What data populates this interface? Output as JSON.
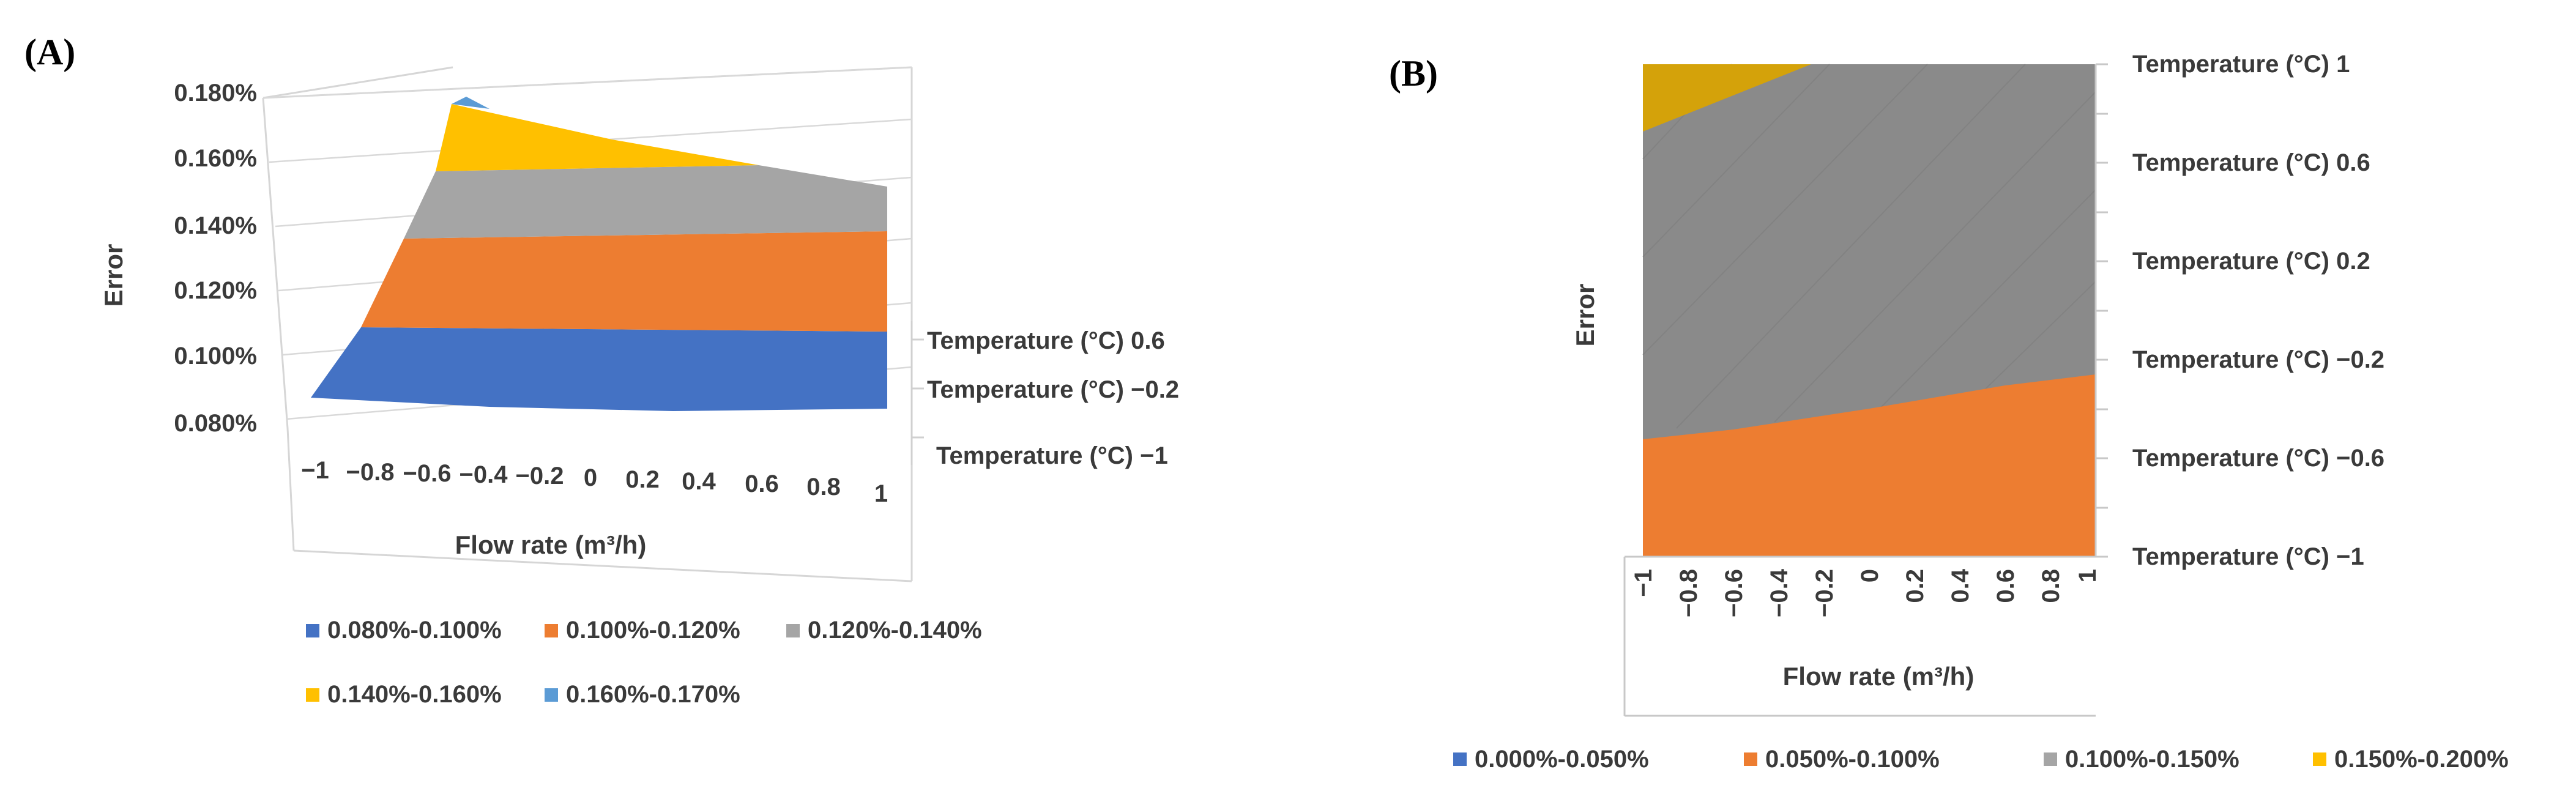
{
  "chart_data": [
    {
      "panel_label": "(A)",
      "type": "surface-3d",
      "xlabel": "Error",
      "xlabel_note": "vertical axis title",
      "z_ticks": [
        "0.080%",
        "0.100%",
        "0.120%",
        "0.140%",
        "0.160%",
        "0.180%"
      ],
      "zlim": [
        0.08,
        0.18
      ],
      "flow_label_html": "Flow rate (m³/h)",
      "flow_ticks": [
        "−1",
        "−0.8",
        "−0.6",
        "−0.4",
        "−0.2",
        "0",
        "0.2",
        "0.4",
        "0.6",
        "0.8",
        "1"
      ],
      "temp_ticks": [
        "Temperature (°C) 0.6",
        "Temperature (°C) −0.2",
        "Temperature (°C) −1"
      ],
      "legend": [
        {
          "label": "0.080%-0.100%",
          "color": "#4472C4"
        },
        {
          "label": "0.100%-0.120%",
          "color": "#ED7D31"
        },
        {
          "label": "0.120%-0.140%",
          "color": "#A5A5A5"
        },
        {
          "label": "0.140%-0.160%",
          "color": "#FFC000"
        },
        {
          "label": "0.160%-0.170%",
          "color": "#5B9BD5"
        }
      ],
      "error_at_back_edge": [
        0.172,
        0.164,
        0.158,
        0.154,
        0.152,
        0.15,
        0.148,
        0.147,
        0.145,
        0.143,
        0.141
      ],
      "error_at_front_edge": [
        0.087,
        0.086,
        0.086,
        0.085,
        0.085,
        0.085,
        0.085,
        0.084,
        0.084,
        0.084,
        0.084
      ]
    },
    {
      "panel_label": "(B)",
      "type": "contour",
      "ylabel": "Error",
      "xlabel": "Flow rate (m³/h)",
      "x_ticks": [
        "−1",
        "−0.8",
        "−0.6",
        "−0.4",
        "−0.2",
        "0",
        "0.2",
        "0.4",
        "0.6",
        "0.8",
        "1"
      ],
      "y_ticks": [
        "Temperature (°C) 1",
        "Temperature (°C) 0.6",
        "Temperature (°C) 0.2",
        "Temperature (°C) −0.2",
        "Temperature (°C) −0.6",
        "Temperature (°C) −1"
      ],
      "xlim": [
        -1,
        1
      ],
      "ylim": [
        -1,
        1
      ],
      "legend": [
        {
          "label": "0.000%-0.050%",
          "color": "#4472C4"
        },
        {
          "label": "0.050%-0.100%",
          "color": "#ED7D31"
        },
        {
          "label": "0.100%-0.150%",
          "color": "#A5A5A5"
        },
        {
          "label": "0.150%-0.200%",
          "color": "#FFC000"
        }
      ],
      "boundary_0_10pct": [
        [
          -1,
          -0.48
        ],
        [
          -0.6,
          -0.42
        ],
        [
          0,
          -0.33
        ],
        [
          0.6,
          -0.22
        ],
        [
          1,
          -0.17
        ]
      ],
      "boundary_0_15pct": [
        [
          -1,
          0.74
        ],
        [
          -0.6,
          0.92
        ],
        [
          -0.4,
          1.0
        ]
      ]
    }
  ]
}
